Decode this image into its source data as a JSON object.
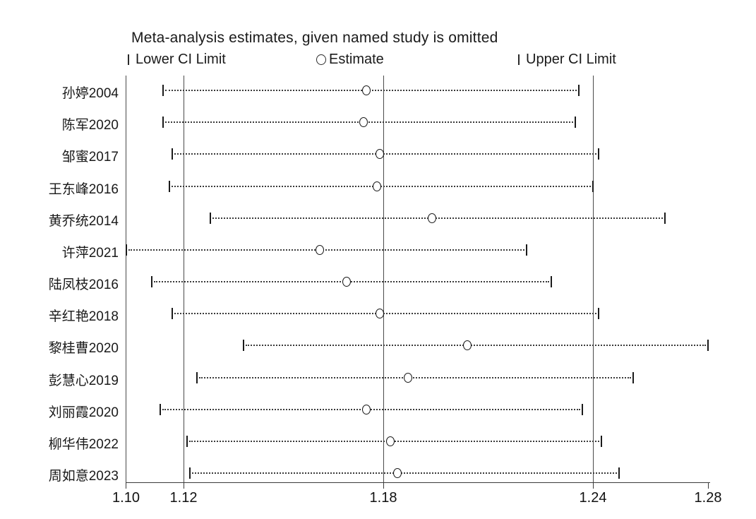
{
  "chart_data": {
    "type": "scatter",
    "subtype": "leave-one-out-sensitivity-forest",
    "title": "Meta-analysis estimates, given named study is omitted",
    "legend": [
      {
        "marker": "bar",
        "label": "Lower CI Limit"
      },
      {
        "marker": "circle",
        "label": "Estimate"
      },
      {
        "marker": "bar",
        "label": "Upper CI Limit"
      }
    ],
    "xlim": [
      1.1,
      1.28
    ],
    "x_ticks": [
      "1.10",
      "1.12",
      "1.18",
      "1.24",
      "1.28"
    ],
    "x_tick_values": [
      1.1,
      1.12,
      1.18,
      1.24,
      1.28
    ],
    "reference_line_values": [
      1.12,
      1.18,
      1.24
    ],
    "grid": "vertical-reference-lines-only",
    "legend_position": "top",
    "studies": [
      {
        "name": "孙婷2004",
        "lower": 1.113,
        "estimate": 1.175,
        "upper": 1.236
      },
      {
        "name": "陈军2020",
        "lower": 1.113,
        "estimate": 1.174,
        "upper": 1.235
      },
      {
        "name": "邹蜜2017",
        "lower": 1.116,
        "estimate": 1.179,
        "upper": 1.242
      },
      {
        "name": "王东峰2016",
        "lower": 1.115,
        "estimate": 1.178,
        "upper": 1.24
      },
      {
        "name": "黄乔统2014",
        "lower": 1.128,
        "estimate": 1.194,
        "upper": 1.265
      },
      {
        "name": "许萍2021",
        "lower": 1.1,
        "estimate": 1.161,
        "upper": 1.221
      },
      {
        "name": "陆凤枝2016",
        "lower": 1.109,
        "estimate": 1.169,
        "upper": 1.228
      },
      {
        "name": "辛红艳2018",
        "lower": 1.116,
        "estimate": 1.179,
        "upper": 1.242
      },
      {
        "name": "黎桂曹2020",
        "lower": 1.138,
        "estimate": 1.204,
        "upper": 1.28
      },
      {
        "name": "彭慧心2019",
        "lower": 1.124,
        "estimate": 1.187,
        "upper": 1.254
      },
      {
        "name": "刘丽霞2020",
        "lower": 1.112,
        "estimate": 1.175,
        "upper": 1.237
      },
      {
        "name": "柳华伟2022",
        "lower": 1.121,
        "estimate": 1.182,
        "upper": 1.243
      },
      {
        "name": "周如意2023",
        "lower": 1.122,
        "estimate": 1.184,
        "upper": 1.249
      }
    ],
    "colors": {
      "background": "#ffffff",
      "text": "#1a1a1a",
      "axis": "#3a3a3a",
      "reference_line": "#4a4a4a",
      "marker": "#1a1a1a"
    }
  }
}
